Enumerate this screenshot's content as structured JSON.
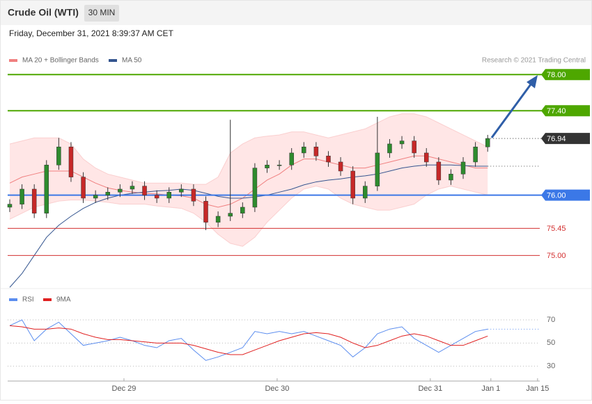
{
  "chart_data": [
    {
      "type": "candlestick",
      "title": "Crude Oil (WTI)",
      "timeframe": "30 MIN",
      "subtitle": "Friday, December 31, 2021 8:39:37 AM CET",
      "source": "Research © 2021 Trading Central",
      "up_color": "#2e8b2e",
      "down_color": "#c62828",
      "xlim": [
        -0.17,
        43.25
      ],
      "ylim": [
        74.45,
        78.43
      ],
      "open": [
        75.8,
        75.85,
        76.1,
        75.7,
        76.5,
        76.8,
        76.3,
        75.95,
        76.0,
        76.05,
        76.1,
        76.15,
        76.0,
        75.95,
        76.05,
        76.1,
        75.9,
        75.55,
        75.65,
        75.7,
        75.8,
        76.45,
        76.5,
        76.5,
        76.7,
        76.8,
        76.65,
        76.55,
        76.4,
        75.95,
        76.15,
        76.7,
        76.85,
        76.9,
        76.7,
        76.55,
        76.25,
        76.35,
        76.55,
        76.8
      ],
      "high": [
        75.93,
        76.18,
        76.18,
        76.58,
        76.95,
        76.88,
        76.38,
        76.08,
        76.13,
        76.18,
        76.23,
        76.23,
        76.08,
        76.13,
        76.18,
        76.18,
        75.98,
        75.73,
        77.25,
        75.88,
        76.53,
        76.58,
        76.58,
        76.78,
        76.88,
        76.88,
        76.73,
        76.63,
        76.48,
        76.23,
        77.3,
        76.93,
        76.98,
        76.98,
        76.78,
        76.63,
        76.43,
        76.63,
        76.88,
        77.0
      ],
      "low": [
        75.72,
        75.77,
        75.62,
        75.62,
        76.42,
        76.22,
        75.87,
        75.87,
        75.92,
        75.97,
        76.02,
        75.92,
        75.87,
        75.87,
        75.97,
        75.82,
        75.42,
        75.47,
        75.57,
        75.62,
        75.72,
        76.37,
        76.42,
        76.42,
        76.62,
        76.57,
        76.47,
        76.32,
        75.85,
        75.87,
        76.07,
        76.62,
        76.77,
        76.62,
        76.47,
        76.17,
        76.17,
        76.27,
        76.47,
        76.72
      ],
      "close": [
        75.85,
        76.1,
        75.7,
        76.5,
        76.8,
        76.3,
        75.95,
        76.0,
        76.05,
        76.1,
        76.15,
        76.0,
        75.95,
        76.05,
        76.1,
        75.9,
        75.55,
        75.65,
        75.7,
        75.8,
        76.45,
        76.5,
        76.5,
        76.7,
        76.8,
        76.65,
        76.55,
        76.4,
        75.95,
        76.15,
        76.7,
        76.85,
        76.9,
        76.7,
        76.55,
        76.25,
        76.35,
        76.55,
        76.8,
        76.94
      ],
      "bands": {
        "name": "MA 20 + Bollinger Bands",
        "color": "#f08080",
        "fill": "#ffd6d6",
        "upper": [
          76.85,
          76.9,
          76.95,
          76.95,
          76.95,
          76.85,
          76.6,
          76.45,
          76.35,
          76.3,
          76.25,
          76.2,
          76.2,
          76.2,
          76.2,
          76.18,
          76.18,
          76.3,
          76.7,
          76.85,
          76.95,
          76.98,
          77.0,
          77.05,
          77.05,
          77.0,
          76.95,
          77.0,
          77.05,
          77.1,
          77.2,
          77.3,
          77.35,
          77.35,
          77.3,
          77.2,
          77.1,
          77.0,
          76.9,
          76.8
        ],
        "middle": [
          76.2,
          76.3,
          76.35,
          76.4,
          76.4,
          76.4,
          76.3,
          76.2,
          76.12,
          76.08,
          76.05,
          76.03,
          76.02,
          76.0,
          75.99,
          75.95,
          75.85,
          75.8,
          75.85,
          75.95,
          76.1,
          76.25,
          76.35,
          76.5,
          76.6,
          76.6,
          76.55,
          76.5,
          76.45,
          76.45,
          76.5,
          76.55,
          76.6,
          76.65,
          76.65,
          76.6,
          76.55,
          76.5,
          76.45,
          76.45
        ],
        "lower": [
          75.6,
          75.7,
          75.8,
          75.85,
          75.9,
          75.92,
          75.92,
          75.9,
          75.88,
          75.85,
          75.85,
          75.85,
          75.82,
          75.8,
          75.78,
          75.7,
          75.55,
          75.35,
          75.2,
          75.15,
          75.3,
          75.55,
          75.75,
          75.95,
          76.1,
          76.15,
          76.1,
          75.95,
          75.85,
          75.8,
          75.75,
          75.75,
          75.8,
          75.85,
          76.0,
          76.1,
          76.15,
          76.1,
          76.05,
          76.0
        ]
      },
      "series": [
        {
          "name": "MA 50",
          "color": "#34558f",
          "values": [
            74.47,
            74.7,
            75.0,
            75.3,
            75.5,
            75.65,
            75.78,
            75.88,
            75.95,
            76.0,
            76.03,
            76.05,
            76.07,
            76.08,
            76.1,
            76.08,
            76.03,
            75.98,
            75.95,
            75.95,
            75.97,
            76.0,
            76.05,
            76.1,
            76.17,
            76.22,
            76.25,
            76.27,
            76.3,
            76.32,
            76.35,
            76.4,
            76.45,
            76.48,
            76.5,
            76.5,
            76.5,
            76.49,
            76.48,
            76.48
          ]
        }
      ],
      "levels": [
        {
          "value": 78,
          "label": "78.00",
          "color": "#4ea700"
        },
        {
          "value": 77.4,
          "label": "77.40",
          "color": "#4ea700"
        },
        {
          "value": 76,
          "label": "76.00",
          "color": "#3b78e7"
        },
        {
          "value": 75.45,
          "color": "#d32f2f"
        },
        {
          "value": 75,
          "label": "75.00",
          "color": "#d32f2f"
        }
      ]
    },
    {
      "type": "line",
      "xlim": [
        -0.17,
        43.25
      ],
      "ylim": [
        22,
        82
      ],
      "yticks": [
        70,
        50,
        30
      ],
      "grid": true,
      "series": [
        {
          "name": "RSI",
          "color": "#5b8def",
          "values": [
            65,
            70,
            52,
            62,
            68,
            58,
            48,
            50,
            52,
            55,
            52,
            48,
            46,
            52,
            54,
            44,
            35,
            38,
            42,
            46,
            60,
            58,
            60,
            58,
            60,
            56,
            52,
            48,
            38,
            46,
            58,
            62,
            64,
            54,
            48,
            42,
            48,
            54,
            60,
            62
          ]
        },
        {
          "name": "9MA",
          "color": "#e02020",
          "values": [
            65,
            64,
            62,
            62,
            63,
            62,
            58,
            55,
            53,
            53,
            52,
            51,
            50,
            50,
            50,
            48,
            45,
            42,
            40,
            40,
            44,
            48,
            52,
            55,
            58,
            59,
            58,
            55,
            50,
            46,
            48,
            52,
            56,
            58,
            56,
            52,
            48,
            48,
            52,
            56
          ]
        }
      ],
      "xticks": [
        {
          "value": 9.32,
          "label": "Dec 29"
        },
        {
          "value": 21.82,
          "label": "Dec 30"
        },
        {
          "value": 34.32,
          "label": "Dec 31"
        },
        {
          "value": 39.26,
          "label": "Jan 1"
        },
        {
          "value": 43.07,
          "label": "Jan 15"
        }
      ]
    }
  ]
}
